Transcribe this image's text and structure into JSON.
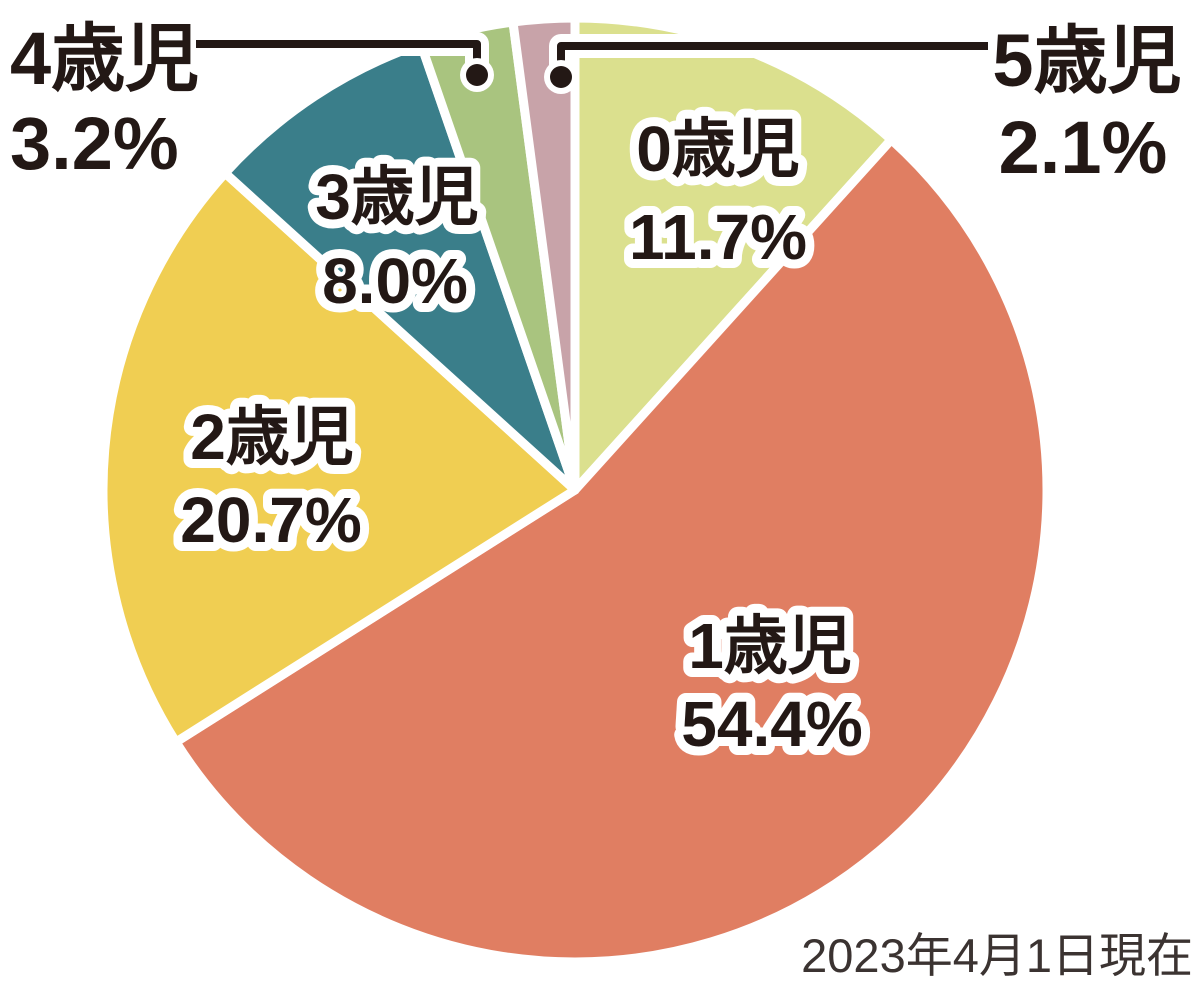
{
  "chart_data": {
    "type": "pie",
    "title": "",
    "categories": [
      "0歳児",
      "1歳児",
      "2歳児",
      "3歳児",
      "4歳児",
      "5歳児"
    ],
    "values": [
      11.7,
      54.4,
      20.7,
      8.0,
      3.2,
      2.1
    ],
    "unit": "%",
    "direction": "clockwise",
    "start_angle_deg": 0,
    "legend_position": "none",
    "annotation": "2023年4月1日現在",
    "slices": [
      {
        "label": "0歳児",
        "value": 11.7,
        "display": "11.7%",
        "color": "#dbe08e",
        "label_placement": "inside"
      },
      {
        "label": "1歳児",
        "value": 54.4,
        "display": "54.4%",
        "color": "#e07e62",
        "label_placement": "inside"
      },
      {
        "label": "2歳児",
        "value": 20.7,
        "display": "20.7%",
        "color": "#f0ce52",
        "label_placement": "inside"
      },
      {
        "label": "3歳児",
        "value": 8.0,
        "display": "8.0%",
        "color": "#3a7e8a",
        "label_placement": "inside"
      },
      {
        "label": "4歳児",
        "value": 3.2,
        "display": "3.2%",
        "color": "#a9c47f",
        "label_placement": "outside-left-callout"
      },
      {
        "label": "5歳児",
        "value": 2.1,
        "display": "2.1%",
        "color": "#c8a3a9",
        "label_placement": "outside-right-callout"
      }
    ]
  },
  "colors": {
    "background": "#ffffff",
    "label_text": "#231815",
    "label_outline": "#ffffff",
    "leader_line": "#231815",
    "date_text": "#3b3331"
  }
}
